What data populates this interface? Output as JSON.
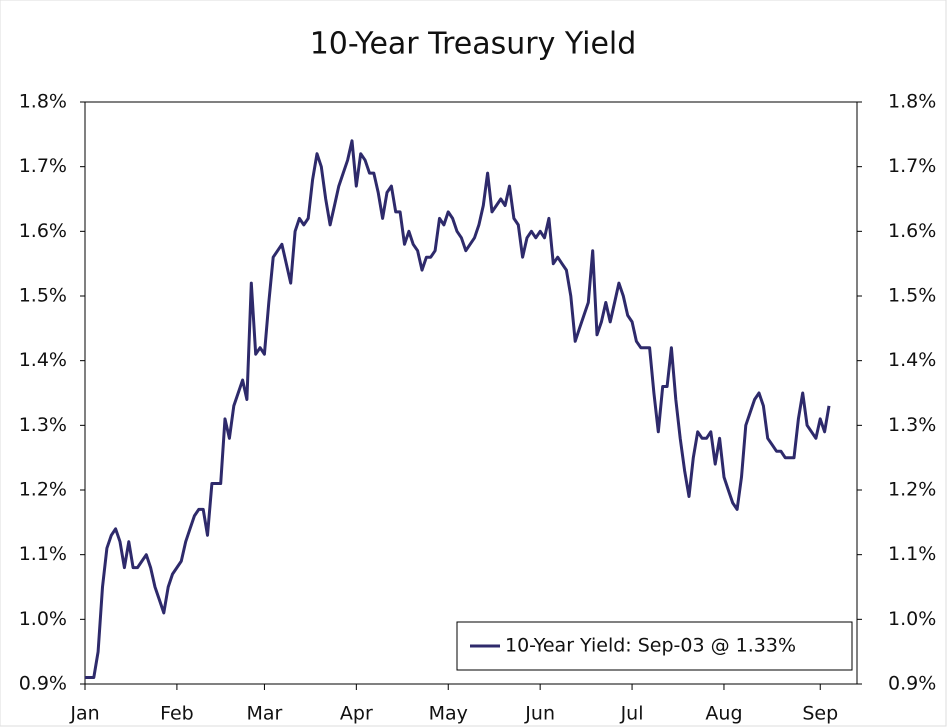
{
  "chart_data": {
    "type": "line",
    "title": "10-Year Treasury Yield",
    "categories": [
      "Jan",
      null,
      null,
      null,
      null,
      null,
      null,
      null,
      null,
      null,
      null,
      null,
      null,
      null,
      null,
      null,
      null,
      null,
      null,
      null,
      null,
      "Feb",
      null,
      null,
      null,
      null,
      null,
      null,
      null,
      null,
      null,
      null,
      null,
      null,
      null,
      null,
      null,
      null,
      null,
      null,
      null,
      "Mar",
      null,
      null,
      null,
      null,
      null,
      null,
      null,
      null,
      null,
      null,
      null,
      null,
      null,
      null,
      null,
      null,
      null,
      null,
      null,
      null,
      "Apr",
      null,
      null,
      null,
      null,
      null,
      null,
      null,
      null,
      null,
      null,
      null,
      null,
      null,
      null,
      null,
      null,
      null,
      null,
      null,
      null,
      "May",
      null,
      null,
      null,
      null,
      null,
      null,
      null,
      null,
      null,
      null,
      null,
      null,
      null,
      null,
      null,
      null,
      null,
      null,
      null,
      null,
      "Jun",
      null,
      null,
      null,
      null,
      null,
      null,
      null,
      null,
      null,
      null,
      null,
      null,
      null,
      null,
      null,
      null,
      null,
      null,
      null,
      null,
      "Jul",
      null,
      null,
      null,
      null,
      null,
      null,
      null,
      null,
      null,
      null,
      null,
      null,
      null,
      null,
      null,
      null,
      null,
      null,
      null,
      null,
      "Aug",
      null,
      null,
      null,
      null,
      null,
      null,
      null,
      null,
      null,
      null,
      null,
      null,
      null,
      null,
      null,
      null,
      null,
      null,
      null,
      null,
      null,
      "Sep",
      null,
      null
    ],
    "series": [
      {
        "name": "10-Year Yield: Sep-03 @ 1.33%",
        "color": "#2e2a6b",
        "values": [
          0.91,
          0.91,
          0.91,
          0.95,
          1.05,
          1.11,
          1.13,
          1.14,
          1.12,
          1.08,
          1.12,
          1.08,
          1.08,
          1.09,
          1.1,
          1.08,
          1.05,
          1.03,
          1.01,
          1.05,
          1.07,
          1.08,
          1.09,
          1.12,
          1.14,
          1.16,
          1.17,
          1.17,
          1.13,
          1.21,
          1.21,
          1.21,
          1.31,
          1.28,
          1.33,
          1.35,
          1.37,
          1.34,
          1.52,
          1.41,
          1.42,
          1.41,
          1.49,
          1.56,
          1.57,
          1.58,
          1.55,
          1.52,
          1.6,
          1.62,
          1.61,
          1.62,
          1.68,
          1.72,
          1.7,
          1.65,
          1.61,
          1.64,
          1.67,
          1.69,
          1.71,
          1.74,
          1.67,
          1.72,
          1.71,
          1.69,
          1.69,
          1.66,
          1.62,
          1.66,
          1.67,
          1.63,
          1.63,
          1.58,
          1.6,
          1.58,
          1.57,
          1.54,
          1.56,
          1.56,
          1.57,
          1.62,
          1.61,
          1.63,
          1.62,
          1.6,
          1.59,
          1.57,
          1.58,
          1.59,
          1.61,
          1.64,
          1.69,
          1.63,
          1.64,
          1.65,
          1.64,
          1.67,
          1.62,
          1.61,
          1.56,
          1.59,
          1.6,
          1.59,
          1.6,
          1.59,
          1.62,
          1.55,
          1.56,
          1.55,
          1.54,
          1.5,
          1.43,
          1.45,
          1.47,
          1.49,
          1.57,
          1.44,
          1.46,
          1.49,
          1.46,
          1.49,
          1.52,
          1.5,
          1.47,
          1.46,
          1.43,
          1.42,
          1.42,
          1.42,
          1.35,
          1.29,
          1.36,
          1.36,
          1.42,
          1.34,
          1.28,
          1.23,
          1.19,
          1.25,
          1.29,
          1.28,
          1.28,
          1.29,
          1.24,
          1.28,
          1.22,
          1.2,
          1.18,
          1.17,
          1.22,
          1.3,
          1.32,
          1.34,
          1.35,
          1.33,
          1.28,
          1.27,
          1.26,
          1.26,
          1.25,
          1.25,
          1.25,
          1.31,
          1.35,
          1.3,
          1.29,
          1.28,
          1.31,
          1.29,
          1.33
        ]
      }
    ],
    "ylim": [
      0.9,
      1.8
    ],
    "yticks": [
      {
        "value": 0.9,
        "label": "0.9%"
      },
      {
        "value": 1.0,
        "label": "1.0%"
      },
      {
        "value": 1.1,
        "label": "1.1%"
      },
      {
        "value": 1.2,
        "label": "1.2%"
      },
      {
        "value": 1.3,
        "label": "1.3%"
      },
      {
        "value": 1.4,
        "label": "1.4%"
      },
      {
        "value": 1.5,
        "label": "1.5%"
      },
      {
        "value": 1.6,
        "label": "1.6%"
      },
      {
        "value": 1.7,
        "label": "1.7%"
      },
      {
        "value": 1.8,
        "label": "1.8%"
      }
    ],
    "y2lim": [
      0.9,
      1.8
    ],
    "y2ticks": [
      {
        "value": 0.9,
        "label": "0.9%"
      },
      {
        "value": 1.0,
        "label": "1.0%"
      },
      {
        "value": 1.1,
        "label": "1.1%"
      },
      {
        "value": 1.2,
        "label": "1.2%"
      },
      {
        "value": 1.3,
        "label": "1.3%"
      },
      {
        "value": 1.4,
        "label": "1.4%"
      },
      {
        "value": 1.5,
        "label": "1.5%"
      },
      {
        "value": 1.6,
        "label": "1.6%"
      },
      {
        "value": 1.7,
        "label": "1.7%"
      },
      {
        "value": 1.8,
        "label": "1.8%"
      }
    ],
    "legend": "lower right"
  }
}
